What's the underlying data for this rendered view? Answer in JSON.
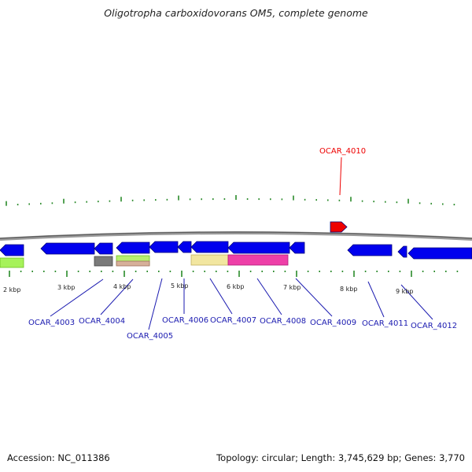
{
  "title": "Oligotropha carboxidovorans OM5, complete genome",
  "footer": {
    "accession": "Accession: NC_011386",
    "summary": "Topology: circular; Length: 3,745,629 bp; Genes: 3,770"
  },
  "colors": {
    "strand": "#0000ee",
    "highlight": "#ee0000",
    "label": "#1a1ab0",
    "tick": "#2a8a2a"
  },
  "scale_labels": [
    "2 kbp",
    "3 kbp",
    "4 kbp",
    "5 kbp",
    "6 kbp",
    "7 kbp",
    "8 kbp",
    "9 kbp"
  ],
  "genes": [
    {
      "id": "OCAR_4003",
      "highlighted": false
    },
    {
      "id": "OCAR_4004",
      "highlighted": false
    },
    {
      "id": "OCAR_4005",
      "highlighted": false
    },
    {
      "id": "OCAR_4006",
      "highlighted": false
    },
    {
      "id": "OCAR_4007",
      "highlighted": false
    },
    {
      "id": "OCAR_4008",
      "highlighted": false
    },
    {
      "id": "OCAR_4009",
      "highlighted": false
    },
    {
      "id": "OCAR_4010",
      "highlighted": true
    },
    {
      "id": "OCAR_4011",
      "highlighted": false
    },
    {
      "id": "OCAR_4012",
      "highlighted": false
    }
  ]
}
